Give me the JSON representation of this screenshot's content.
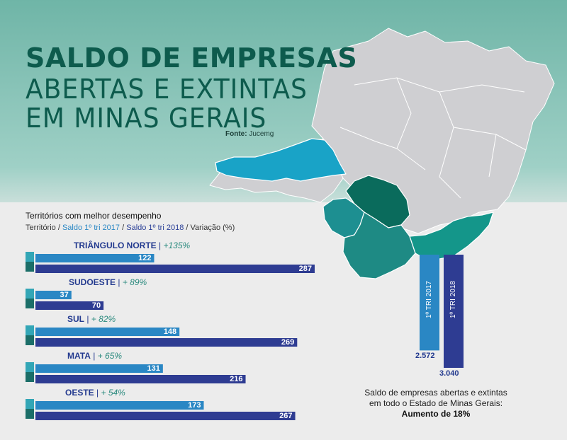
{
  "title": {
    "line1": "SALDO DE EMPRESAS",
    "line2": "ABERTAS E EXTINTAS",
    "line3": "EM MINAS GERAIS"
  },
  "source": {
    "label": "Fonte:",
    "value": "Jucemg"
  },
  "legend": {
    "heading": "Territórios com melhor desempenho",
    "sub_territory": "Território /",
    "sub_2017": "Saldo 1º tri 2017",
    "sub_sep1": "/",
    "sub_2018": "Saldo 1º tri 2018",
    "sub_sep2": "/ Variação (%)"
  },
  "colors": {
    "bar_2017": "#2a87c4",
    "bar_2018": "#2e3c92",
    "tab_2017": "#1f9eb0",
    "tab_2018": "#1b6e68",
    "map_gray": "#cfcfd2",
    "map_triangulo": "#19a3c7",
    "map_sudoeste": "#0a6b5c",
    "map_sul": "#1e8a84",
    "map_mata": "#14968a",
    "map_oeste": "#1d8f91"
  },
  "chart_data": [
    {
      "type": "bar",
      "categories": [
        "TRIÂNGULO NORTE",
        "SUDOESTE",
        "SUL",
        "MATA",
        "OESTE"
      ],
      "variations": [
        "+135%",
        "+ 89%",
        "+ 82%",
        "+ 65%",
        "+ 54%"
      ],
      "series": [
        {
          "name": "Saldo 1º tri 2017",
          "values": [
            122,
            37,
            148,
            131,
            173
          ]
        },
        {
          "name": "Saldo 1º tri 2018",
          "values": [
            287,
            70,
            269,
            216,
            267
          ]
        }
      ],
      "value_labels": {
        "s2017": [
          "122",
          "37",
          "148",
          "131",
          "173"
        ],
        "s2018": [
          "287",
          "70",
          "269",
          "216",
          "267"
        ]
      },
      "xlim": [
        0,
        287
      ]
    },
    {
      "type": "bar",
      "categories": [
        "1º TRI 2017",
        "1º TRI 2018"
      ],
      "values": [
        2572,
        3040
      ],
      "value_labels": [
        "2.572",
        "3.040"
      ],
      "ylim": [
        0,
        3040
      ]
    }
  ],
  "note": {
    "line1": "Saldo de empresas abertas e extintas",
    "line2": "em todo o Estado de Minas Gerais:",
    "strong": "Aumento de 18%"
  }
}
